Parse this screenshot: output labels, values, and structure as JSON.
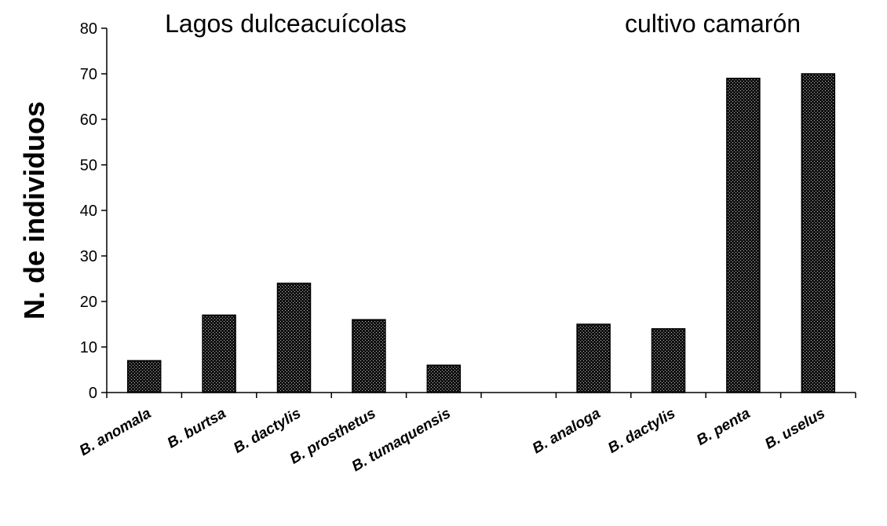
{
  "chart_data": {
    "type": "bar",
    "ylabel": "N. de individuos",
    "ylim": [
      0,
      80
    ],
    "yticks": [
      0,
      10,
      20,
      30,
      40,
      50,
      60,
      70,
      80
    ],
    "grid": false,
    "legend": "none",
    "bar_fill": "#222222",
    "groups": [
      {
        "label": "Lagos dulceacuícolas",
        "categories": [
          "B. anomala",
          "B. burtsa",
          "B. dactylis",
          "B. prosthetus",
          "B. tumaquensis"
        ],
        "values": [
          7,
          17,
          24,
          16,
          6
        ]
      },
      {
        "label": "cultivo camarón",
        "categories": [
          "B. analoga",
          "B. dactylis",
          "B. penta",
          "B. uselus"
        ],
        "values": [
          15,
          14,
          69,
          70
        ]
      }
    ],
    "categories": [
      "B. anomala",
      "B. burtsa",
      "B. dactylis",
      "B. prosthetus",
      "B. tumaquensis",
      "",
      "B. analoga",
      "B. dactylis",
      "B. penta",
      "B. uselus"
    ],
    "values": [
      7,
      17,
      24,
      16,
      6,
      null,
      15,
      14,
      69,
      70
    ]
  }
}
